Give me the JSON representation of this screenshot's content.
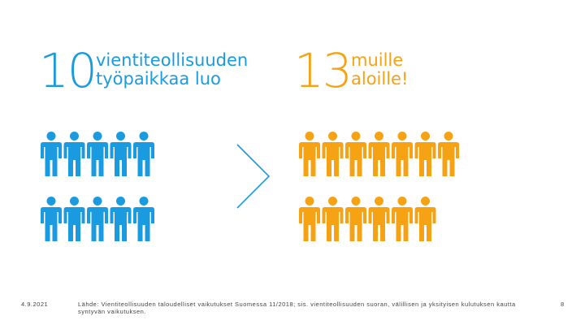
{
  "left": {
    "number": "10",
    "line1": "vientiteollisuuden",
    "line2": "työpaikkaa luo",
    "color": "#1a9be0",
    "people_count": 10
  },
  "right": {
    "number": "13",
    "line1": "muille",
    "line2": "aloille!",
    "color": "#f5a214",
    "people_count": 13
  },
  "divider_icon": "chevron-right-icon",
  "footer": {
    "date": "4.9.2021",
    "source": "Lähde: Vientiteollisuuden taloudelliset vaikutukset Suomessa 11/2018; sis. vientiteollisuuden suoran, välillisen ja yksityisen kulutuksen kautta syntyvän vaikutuksen.",
    "page": "8"
  }
}
